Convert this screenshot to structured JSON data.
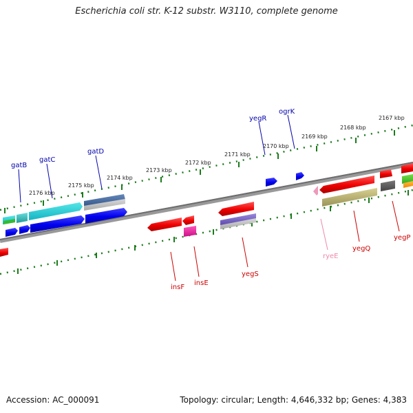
{
  "title": "Escherichia coli str. K-12 substr. W3110, complete genome",
  "footer": {
    "accession": "Accession: AC_000091",
    "summary": "Topology: circular; Length: 4,646,332 bp; Genes: 4,383"
  },
  "ruler_labels": [
    "2176 kbp",
    "2175 kbp",
    "2174 kbp",
    "2173 kbp",
    "2172 kbp",
    "2171 kbp",
    "2170 kbp",
    "2169 kbp",
    "2168 kbp",
    "2167 kbp"
  ],
  "gene_labels": [
    "gatB",
    "gatC",
    "gatD",
    "yegR",
    "ogrK",
    "insF",
    "insE",
    "yegS",
    "ryeE",
    "yegQ",
    "yegP"
  ],
  "colors": {
    "plus_strand_label": "#0000aa",
    "minus_strand_label": "#cc0000",
    "ncrna_label": "#ee88aa",
    "backbone": "#7a7a7a",
    "ticks": "#1a7a1a"
  }
}
